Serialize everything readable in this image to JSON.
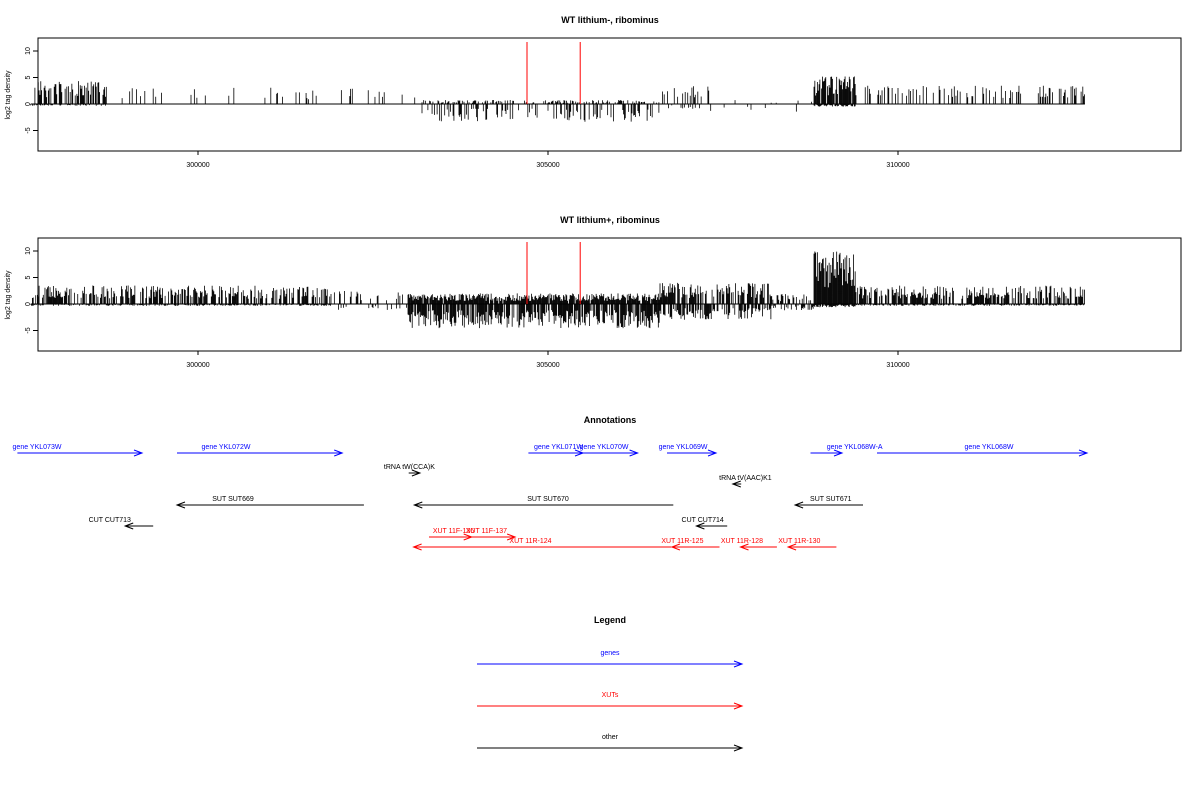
{
  "colors": {
    "genes": "#0000ff",
    "xuts": "#ff0000",
    "other": "#000000",
    "marker": "#ff0000"
  },
  "chart_data": [
    {
      "type": "bar",
      "title": "WT lithium-, ribominus",
      "ylabel": "log2 tag density",
      "xlim": [
        297600,
        312600
      ],
      "ylim": [
        -9,
        12
      ],
      "yticks": [
        -5,
        0,
        5,
        10
      ],
      "xticks": [
        300000,
        305000,
        310000
      ],
      "xtick_labels": [
        "300000",
        "305000",
        "310000"
      ],
      "markers": [
        304700,
        305460
      ],
      "data_range": [
        297610,
        312670
      ],
      "regions": [
        {
          "from": 297610,
          "to": 298700,
          "density": 0.55,
          "pos": 3.5,
          "neg": 0.3
        },
        {
          "from": 298700,
          "to": 302700,
          "density": 0.08,
          "pos": 2.5,
          "neg": 0.1
        },
        {
          "from": 302700,
          "to": 303200,
          "density": 0.02,
          "pos": 1.5,
          "neg": 0.3
        },
        {
          "from": 303200,
          "to": 306600,
          "density": 0.35,
          "pos": 0.6,
          "neg": 2.8
        },
        {
          "from": 306600,
          "to": 307300,
          "density": 0.25,
          "pos": 3.0,
          "neg": 0.8
        },
        {
          "from": 307300,
          "to": 308800,
          "density": 0.04,
          "pos": 0.6,
          "neg": 1.5
        },
        {
          "from": 308800,
          "to": 309400,
          "density": 0.9,
          "pos": 4.2,
          "neg": 0.4
        },
        {
          "from": 309400,
          "to": 312670,
          "density": 0.35,
          "pos": 2.8,
          "neg": 0.1
        }
      ]
    },
    {
      "type": "bar",
      "title": "WT lithium+, ribominus",
      "ylabel": "log2 tag density",
      "xlim": [
        297600,
        312600
      ],
      "ylim": [
        -9,
        12
      ],
      "yticks": [
        -5,
        0,
        5,
        10
      ],
      "xticks": [
        300000,
        305000,
        310000
      ],
      "xtick_labels": [
        "300000",
        "305000",
        "310000"
      ],
      "markers": [
        304700,
        305460
      ],
      "data_range": [
        297610,
        312670
      ],
      "regions": [
        {
          "from": 297610,
          "to": 301900,
          "density": 0.6,
          "pos": 2.8,
          "neg": 0.3
        },
        {
          "from": 301900,
          "to": 303000,
          "density": 0.15,
          "pos": 2.0,
          "neg": 1.0
        },
        {
          "from": 303000,
          "to": 306600,
          "density": 0.95,
          "pos": 1.6,
          "neg": 3.8
        },
        {
          "from": 306600,
          "to": 308200,
          "density": 0.7,
          "pos": 3.2,
          "neg": 2.5
        },
        {
          "from": 308200,
          "to": 308800,
          "density": 0.3,
          "pos": 1.5,
          "neg": 1.0
        },
        {
          "from": 308800,
          "to": 309400,
          "density": 1.0,
          "pos": 8.0,
          "neg": 0.5
        },
        {
          "from": 309400,
          "to": 312670,
          "density": 0.65,
          "pos": 2.8,
          "neg": 0.3
        }
      ]
    }
  ],
  "annotations": {
    "title": "Annotations",
    "features": [
      {
        "label": "gene YKL073W",
        "type": "genes",
        "row": 0,
        "x1": 297420,
        "x2": 299200,
        "dir": "+",
        "label_x": 297700
      },
      {
        "label": "gene YKL072W",
        "type": "genes",
        "row": 0,
        "x1": 299700,
        "x2": 302060,
        "dir": "+",
        "label_x": 300400
      },
      {
        "label": "gene YKL071W",
        "type": "genes",
        "row": 0,
        "x1": 304720,
        "x2": 305500,
        "dir": "+",
        "label_x": 305150
      },
      {
        "label": "gene YKL070W",
        "type": "genes",
        "row": 0,
        "x1": 305500,
        "x2": 306280,
        "dir": "+",
        "label_x": 305800
      },
      {
        "label": "gene YKL069W",
        "type": "genes",
        "row": 0,
        "x1": 306700,
        "x2": 307400,
        "dir": "+",
        "label_x": 306930
      },
      {
        "label": "gene YKL068W-A",
        "type": "genes",
        "row": 0,
        "x1": 308750,
        "x2": 309200,
        "dir": "+",
        "label_x": 309380
      },
      {
        "label": "gene YKL068W",
        "type": "genes",
        "row": 0,
        "x1": 309700,
        "x2": 312700,
        "dir": "+",
        "label_x": 311300
      },
      {
        "label": "tRNA tW(CCA)K",
        "type": "other",
        "row": 1,
        "x1": 303010,
        "x2": 303170,
        "dir": "+",
        "label_x": 303020
      },
      {
        "label": "tRNA tV(AAC)K1",
        "type": "other",
        "row": 2,
        "x1": 307640,
        "x2": 307760,
        "dir": "-",
        "label_x": 307820
      },
      {
        "label": "SUT SUT669",
        "type": "other",
        "row": 3,
        "x1": 299700,
        "x2": 302370,
        "dir": "-",
        "label_x": 300500
      },
      {
        "label": "SUT SUT670",
        "type": "other",
        "row": 3,
        "x1": 303090,
        "x2": 306790,
        "dir": "-",
        "label_x": 305000
      },
      {
        "label": "SUT SUT671",
        "type": "other",
        "row": 3,
        "x1": 308530,
        "x2": 309500,
        "dir": "-",
        "label_x": 309040
      },
      {
        "label": "CUT CUT713",
        "type": "other",
        "row": 4,
        "x1": 298960,
        "x2": 299360,
        "dir": "-",
        "label_x": 298740
      },
      {
        "label": "CUT CUT714",
        "type": "other",
        "row": 4,
        "x1": 307120,
        "x2": 307560,
        "dir": "-",
        "label_x": 307210
      },
      {
        "label": "XUT 11F-136",
        "type": "xuts",
        "row": 5,
        "x1": 303300,
        "x2": 303910,
        "dir": "+",
        "label_x": 303650
      },
      {
        "label": "XUT 11F-137",
        "type": "xuts",
        "row": 5,
        "x1": 303910,
        "x2": 304530,
        "dir": "+",
        "label_x": 304120
      },
      {
        "label": "XUT 11R-124",
        "type": "xuts",
        "row": 6,
        "x1": 303080,
        "x2": 306760,
        "dir": "-",
        "label_x": 304750
      },
      {
        "label": "XUT 11R-125",
        "type": "xuts",
        "row": 6,
        "x1": 306770,
        "x2": 307450,
        "dir": "-",
        "label_x": 306920
      },
      {
        "label": "XUT 11R-128",
        "type": "xuts",
        "row": 6,
        "x1": 307750,
        "x2": 308270,
        "dir": "-",
        "label_x": 307770
      },
      {
        "label": "XUT 11R-130",
        "type": "xuts",
        "row": 6,
        "x1": 308430,
        "x2": 309120,
        "dir": "-",
        "label_x": 308590
      }
    ]
  },
  "legend": {
    "title": "Legend",
    "items": [
      {
        "label": "genes",
        "type": "genes"
      },
      {
        "label": "XUTs",
        "type": "xuts"
      },
      {
        "label": "other",
        "type": "other"
      }
    ]
  }
}
